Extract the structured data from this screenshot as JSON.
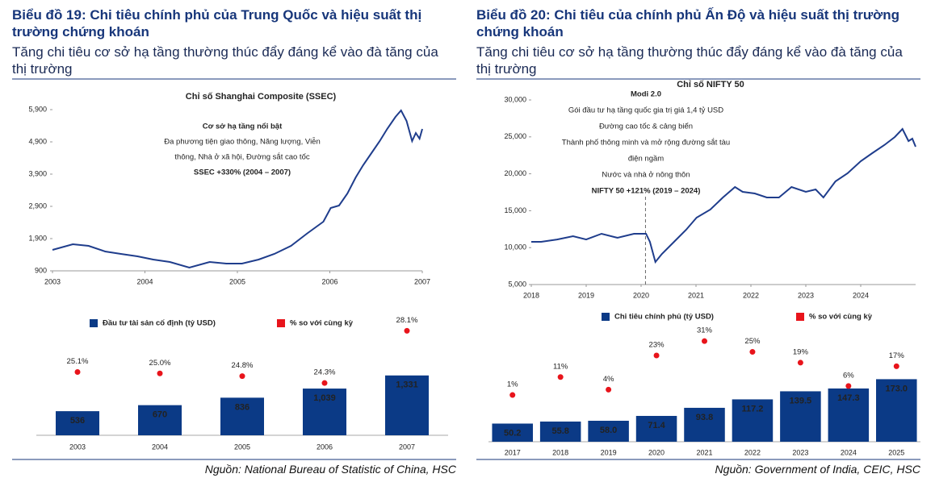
{
  "panels": [
    {
      "heading": "Biểu đồ 19: Chi tiêu chính phủ của Trung Quốc và hiệu suất thị trường chứng khoán",
      "subheading": "Tăng chi tiêu cơ sở hạ tầng thường thúc đẩy đáng kể vào đà tăng của thị trường",
      "source": "Nguồn: National Bureau of Statistic of China, HSC"
    },
    {
      "heading": "Biểu đồ 20: Chi tiêu của chính phủ Ấn Độ và hiệu suất thị trường chứng khoán",
      "subheading": "Tăng chi tiêu cơ sở hạ tầng thường thúc đẩy đáng kể vào đà tăng của thị trường",
      "source": "Nguồn: Government of India, CEIC, HSC"
    }
  ],
  "chart_data": [
    {
      "type": "line",
      "title": "Chỉ số Shanghai Composite (SSEC)",
      "color": "#1f3d8c",
      "annotations": [
        "Cơ sở hạ tầng nổi bật",
        "Đa phương tiện giao thông, Năng lượng, Viễn",
        "thông, Nhà ở xã hội, Đường sắt cao tốc",
        "SSEC +330% (2004 – 2007)"
      ],
      "x": [
        2003.0,
        2003.22,
        2003.39,
        2003.57,
        2003.74,
        2003.92,
        2004.09,
        2004.27,
        2004.48,
        2004.7,
        2004.88,
        2005.05,
        2005.23,
        2005.4,
        2005.58,
        2005.75,
        2005.93,
        2006.01,
        2006.1,
        2006.19,
        2006.28,
        2006.36,
        2006.45,
        2006.54,
        2006.62,
        2006.71,
        2006.77,
        2006.83,
        2006.89,
        2006.93,
        2006.97,
        2007.0
      ],
      "values": [
        1550,
        1725,
        1675,
        1500,
        1425,
        1350,
        1250,
        1175,
        1000,
        1175,
        1125,
        1125,
        1250,
        1425,
        1675,
        2050,
        2425,
        2850,
        2925,
        3300,
        3800,
        4175,
        4550,
        4925,
        5300,
        5675,
        5875,
        5550,
        4925,
        5175,
        5000,
        5300
      ],
      "xlim": [
        2003,
        2007
      ],
      "xticks": [
        2003,
        2004,
        2005,
        2006,
        2007
      ],
      "ylim": [
        900,
        5900
      ],
      "yticks": [
        {
          "value": 900,
          "label": "900"
        },
        {
          "value": 1900,
          "label": "1,900"
        },
        {
          "value": 2900,
          "label": "2,900"
        },
        {
          "value": 3900,
          "label": "3,900"
        },
        {
          "value": 4900,
          "label": "4,900"
        },
        {
          "value": 5900,
          "label": "5,900"
        }
      ]
    },
    {
      "type": "line",
      "title": "Chỉ số NIFTY 50",
      "color": "#1f3d8c",
      "vline": 2020.08,
      "annotations": [
        "Modi 2.0",
        "Gói đầu tư hạ tầng quốc gia trị giá 1,4 tỷ USD",
        "Đường cao tốc & cảng biển",
        "Thành phố thông minh và mở rộng đường sắt tàu",
        "điện ngầm",
        "Nước và nhà ở nông thôn",
        "NIFTY 50 +121% (2019 – 2024)"
      ],
      "x": [
        2018.0,
        2018.18,
        2018.47,
        2018.76,
        2019.0,
        2019.28,
        2019.57,
        2019.87,
        2020.09,
        2020.16,
        2020.26,
        2020.38,
        2020.6,
        2020.82,
        2021.01,
        2021.26,
        2021.49,
        2021.71,
        2021.85,
        2022.07,
        2022.29,
        2022.51,
        2022.74,
        2023.0,
        2023.18,
        2023.32,
        2023.54,
        2023.76,
        2024.0,
        2024.21,
        2024.43,
        2024.62,
        2024.76,
        2024.87,
        2024.94,
        2025.0
      ],
      "values": [
        10790,
        10790,
        11100,
        11550,
        11100,
        11880,
        11330,
        11880,
        11880,
        10790,
        8060,
        9150,
        10790,
        12420,
        14060,
        15150,
        16790,
        18210,
        17560,
        17340,
        16790,
        16790,
        18210,
        17560,
        17880,
        16790,
        18970,
        20070,
        21700,
        22800,
        23890,
        24980,
        26070,
        24430,
        24760,
        23670
      ],
      "xlim": [
        2018,
        2025
      ],
      "xticks": [
        2018,
        2019,
        2020,
        2021,
        2022,
        2023,
        2024
      ],
      "ylim": [
        5000,
        30000
      ],
      "yticks": [
        {
          "value": 5000,
          "label": "5,000"
        },
        {
          "value": 10000,
          "label": "10,000"
        },
        {
          "value": 15000,
          "label": "15,000"
        },
        {
          "value": 20000,
          "label": "20,000"
        },
        {
          "value": 25000,
          "label": "25,000"
        },
        {
          "value": 30000,
          "label": "30,000"
        }
      ]
    },
    {
      "type": "bar",
      "categories": [
        "2003",
        "2004",
        "2005",
        "2006",
        "2007"
      ],
      "ylim": [
        0,
        2600
      ],
      "y2lim": [
        20.5,
        29
      ],
      "series": [
        {
          "name": "Đầu tư tài sản cố định (tỷ USD)",
          "color": "#0b3a86",
          "values": [
            536,
            670,
            836,
            1039,
            1331
          ],
          "value_labels": [
            "536",
            "670",
            "836",
            "1,039",
            "1,331"
          ]
        },
        {
          "name": "% so với cùng kỳ",
          "type": "scatter",
          "axis": "y2",
          "color": "#e8141b",
          "values": [
            25.1,
            25.0,
            24.8,
            24.3,
            28.1
          ],
          "value_labels": [
            "25.1%",
            "25.0%",
            "24.8%",
            "24.3%",
            "28.1%"
          ]
        }
      ]
    },
    {
      "type": "bar",
      "categories": [
        "2017",
        "2018",
        "2019",
        "2020",
        "2021",
        "2022",
        "2023",
        "2024",
        "2025"
      ],
      "ylim": [
        0,
        330
      ],
      "y2lim": [
        -25,
        41.4
      ],
      "series": [
        {
          "name": "Chi tiêu chính phủ (tỷ USD)",
          "color": "#0b3a86",
          "values": [
            50.2,
            55.8,
            58.0,
            71.4,
            93.8,
            117.2,
            139.5,
            147.3,
            173.0
          ],
          "value_labels": [
            "50.2",
            "55.8",
            "58.0",
            "71.4",
            "93.8",
            "117.2",
            "139.5",
            "147.3",
            "173.0"
          ]
        },
        {
          "name": "% so với cùng kỳ",
          "type": "scatter",
          "axis": "y2",
          "color": "#e8141b",
          "values": [
            1,
            11,
            4,
            23,
            31,
            25,
            19,
            6,
            17
          ],
          "value_labels": [
            "1%",
            "11%",
            "4%",
            "23%",
            "31%",
            "25%",
            "19%",
            "6%",
            "17%"
          ]
        }
      ]
    }
  ]
}
